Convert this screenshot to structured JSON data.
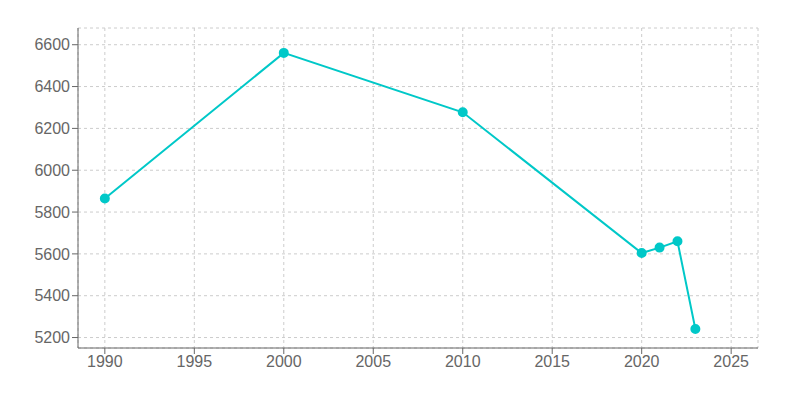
{
  "chart_data": {
    "type": "line",
    "x": [
      1990,
      2000,
      2010,
      2020,
      2021,
      2022,
      2023
    ],
    "values": [
      5865,
      6561,
      6277,
      5604,
      5630,
      5660,
      5241
    ],
    "color": "#00C8C8",
    "marker": "circle",
    "xlim": [
      1988.5,
      2026.5
    ],
    "xticks": [
      1990,
      1995,
      2000,
      2005,
      2010,
      2015,
      2020,
      2025
    ],
    "ylim": [
      5150,
      6680
    ],
    "yticks": [
      5200,
      5400,
      5600,
      5800,
      6000,
      6200,
      6400,
      6600
    ],
    "grid": true
  }
}
